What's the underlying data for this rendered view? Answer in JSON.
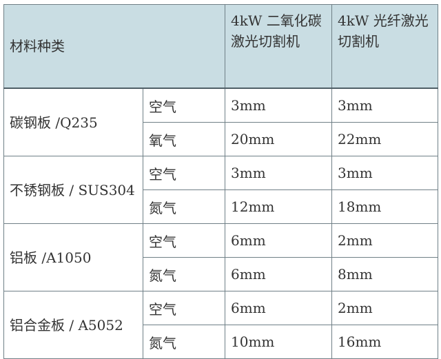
{
  "header": {
    "material": "材料种类",
    "co2": "4kW 二氧化碳激光切割机",
    "fiber": "4kW 光纤激光切割机"
  },
  "colors": {
    "header_bg": "#c9dde3",
    "border": "#6f7f86"
  },
  "groups": [
    {
      "material": "碳钢板 /Q235",
      "rows": [
        {
          "gas": "空气",
          "co2": "3mm",
          "fiber": "3mm"
        },
        {
          "gas": "氧气",
          "co2": "20mm",
          "fiber": "22mm"
        }
      ]
    },
    {
      "material": "不锈钢板 / SUS304",
      "rows": [
        {
          "gas": "空气",
          "co2": "3mm",
          "fiber": "3mm"
        },
        {
          "gas": "氮气",
          "co2": "12mm",
          "fiber": "18mm"
        }
      ]
    },
    {
      "material": "铝板 /A1050",
      "rows": [
        {
          "gas": "空气",
          "co2": "6mm",
          "fiber": "2mm"
        },
        {
          "gas": "氮气",
          "co2": "6mm",
          "fiber": "8mm"
        }
      ]
    },
    {
      "material": "铝合金板 / A5052",
      "rows": [
        {
          "gas": "空气",
          "co2": "6mm",
          "fiber": "2mm"
        },
        {
          "gas": "氮气",
          "co2": "10mm",
          "fiber": "16mm"
        }
      ]
    }
  ]
}
